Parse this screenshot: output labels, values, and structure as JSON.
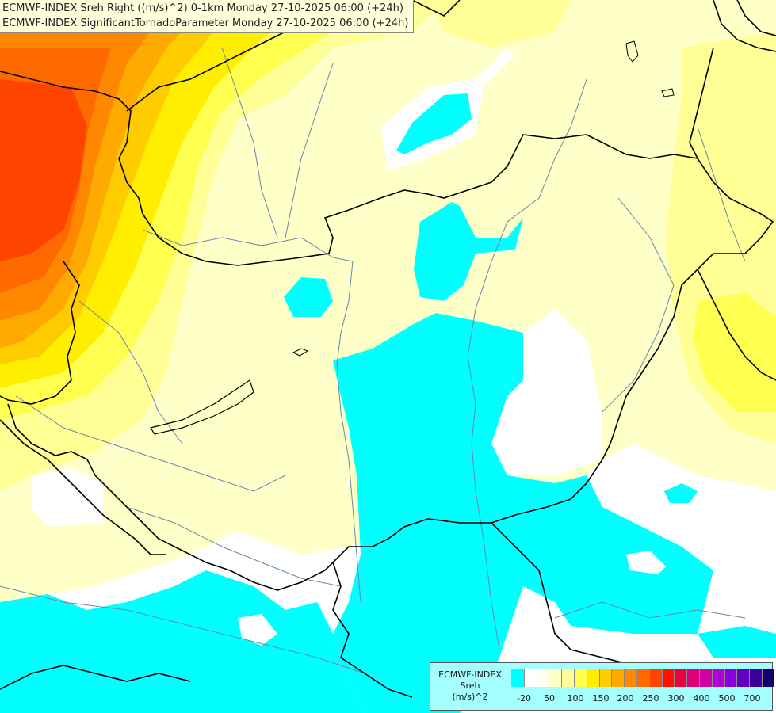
{
  "header": {
    "line1": "ECMWF-INDEX Sreh Right ((m/s)^2) 0-1km Monday 27-10-2025 06:00 (+24h)",
    "line2": "ECMWF-INDEX SignificantTornadoParameter Monday 27-10-2025 06:00 (+24h)"
  },
  "legend": {
    "title": "ECMWF-INDEX",
    "variable": "Sreh",
    "unit": "(m/s)^2",
    "tick_labels": [
      "-20",
      "50",
      "100",
      "150",
      "200",
      "250",
      "300",
      "400",
      "500",
      "700"
    ],
    "colors": [
      "#00ffff",
      "#ffffff",
      "#fffff0",
      "#ffffc8",
      "#ffff96",
      "#ffff50",
      "#ffee00",
      "#ffcc00",
      "#ffaa00",
      "#ff8800",
      "#ff6a00",
      "#ff4400",
      "#ff1100",
      "#e80040",
      "#dd0077",
      "#d000a8",
      "#b000d8",
      "#8800e0",
      "#6000c0",
      "#3a009a",
      "#12006e"
    ]
  },
  "map": {
    "background_color": "#ffffc8",
    "border_color": "#000000",
    "river_color": "#6688aa"
  }
}
